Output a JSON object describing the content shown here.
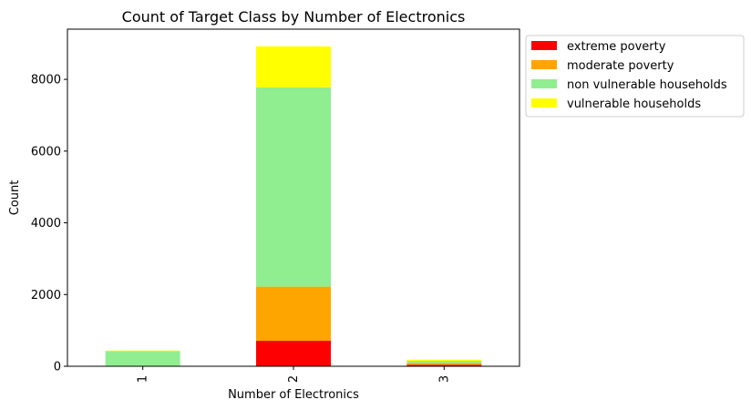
{
  "chart_data": {
    "type": "bar",
    "stacked": true,
    "title": "Count of Target Class by Number of Electronics",
    "xlabel": "Number of Electronics",
    "ylabel": "Count",
    "categories": [
      "1",
      "2",
      "3"
    ],
    "ylim": [
      0,
      9400
    ],
    "yticks": [
      0,
      2000,
      4000,
      6000,
      8000
    ],
    "legend_position": "outside-top-right",
    "series": [
      {
        "name": "extreme poverty",
        "color": "#ff0000",
        "values": [
          5,
          710,
          40
        ]
      },
      {
        "name": "moderate poverty",
        "color": "#ffa500",
        "values": [
          10,
          1510,
          50
        ]
      },
      {
        "name": "non vulnerable households",
        "color": "#90ee90",
        "values": [
          410,
          5560,
          60
        ]
      },
      {
        "name": "vulnerable households",
        "color": "#ffff00",
        "values": [
          15,
          1140,
          35
        ]
      }
    ]
  }
}
